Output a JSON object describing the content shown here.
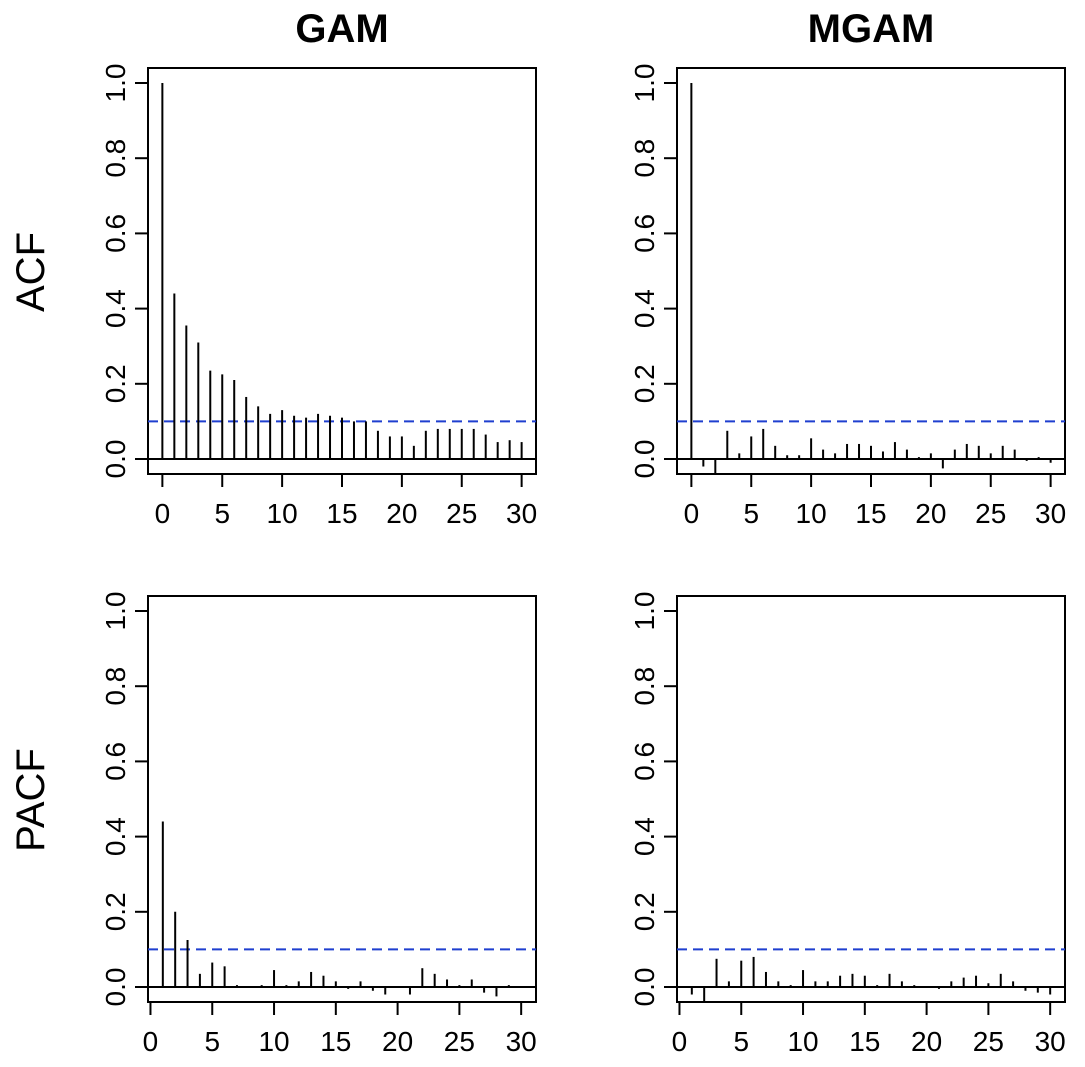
{
  "figure": {
    "col_titles": [
      "GAM",
      "MGAM"
    ],
    "row_titles": [
      "ACF",
      "PACF"
    ]
  },
  "style": {
    "bar_color": "#000000",
    "ci_color": "#1f3fcf",
    "frame_color": "#000000"
  },
  "chart_data": [
    {
      "type": "bar",
      "panel": "GAM ACF",
      "title": "GAM",
      "ylabel": "ACF",
      "xlim": [
        -1.2,
        31.2
      ],
      "ylim": [
        -0.04,
        1.04
      ],
      "xticks": [
        0,
        5,
        10,
        15,
        20,
        25,
        30
      ],
      "xtick_labels": [
        "0",
        "5",
        "10",
        "15",
        "20",
        "25",
        "30"
      ],
      "yticks": [
        0.0,
        0.2,
        0.4,
        0.6,
        0.8,
        1.0
      ],
      "ytick_labels": [
        "0.0",
        "0.2",
        "0.4",
        "0.6",
        "0.8",
        "1.0"
      ],
      "ci": 0.1,
      "x": [
        0,
        1,
        2,
        3,
        4,
        5,
        6,
        7,
        8,
        9,
        10,
        11,
        12,
        13,
        14,
        15,
        16,
        17,
        18,
        19,
        20,
        21,
        22,
        23,
        24,
        25,
        26,
        27,
        28,
        29,
        30
      ],
      "values": [
        1.0,
        0.44,
        0.355,
        0.31,
        0.235,
        0.225,
        0.21,
        0.165,
        0.14,
        0.12,
        0.13,
        0.115,
        0.11,
        0.12,
        0.115,
        0.11,
        0.1,
        0.1,
        0.075,
        0.06,
        0.06,
        0.035,
        0.075,
        0.08,
        0.08,
        0.08,
        0.08,
        0.065,
        0.045,
        0.05,
        0.045
      ]
    },
    {
      "type": "bar",
      "panel": "MGAM ACF",
      "title": "MGAM",
      "ylabel": "",
      "xlim": [
        -1.2,
        31.2
      ],
      "ylim": [
        -0.04,
        1.04
      ],
      "xticks": [
        0,
        5,
        10,
        15,
        20,
        25,
        30
      ],
      "xtick_labels": [
        "0",
        "5",
        "10",
        "15",
        "20",
        "25",
        "30"
      ],
      "yticks": [
        0.0,
        0.2,
        0.4,
        0.6,
        0.8,
        1.0
      ],
      "ytick_labels": [
        "0.0",
        "0.2",
        "0.4",
        "0.6",
        "0.8",
        "1.0"
      ],
      "ci": 0.1,
      "x": [
        0,
        1,
        2,
        3,
        4,
        5,
        6,
        7,
        8,
        9,
        10,
        11,
        12,
        13,
        14,
        15,
        16,
        17,
        18,
        19,
        20,
        21,
        22,
        23,
        24,
        25,
        26,
        27,
        28,
        29,
        30
      ],
      "values": [
        1.0,
        -0.02,
        -0.04,
        0.075,
        0.015,
        0.06,
        0.08,
        0.035,
        0.01,
        0.01,
        0.055,
        0.025,
        0.015,
        0.04,
        0.04,
        0.035,
        0.02,
        0.045,
        0.025,
        0.005,
        0.015,
        -0.025,
        0.025,
        0.04,
        0.035,
        0.015,
        0.035,
        0.025,
        -0.005,
        0.005,
        -0.01
      ]
    },
    {
      "type": "bar",
      "panel": "GAM PACF",
      "title": "",
      "ylabel": "PACF",
      "xlim": [
        -0.2,
        31.2
      ],
      "ylim": [
        -0.04,
        1.04
      ],
      "xticks": [
        0,
        5,
        10,
        15,
        20,
        25,
        30
      ],
      "xtick_labels": [
        "0",
        "5",
        "10",
        "15",
        "20",
        "25",
        "30"
      ],
      "yticks": [
        0.0,
        0.2,
        0.4,
        0.6,
        0.8,
        1.0
      ],
      "ytick_labels": [
        "0.0",
        "0.2",
        "0.4",
        "0.6",
        "0.8",
        "1.0"
      ],
      "ci": 0.1,
      "x": [
        1,
        2,
        3,
        4,
        5,
        6,
        7,
        8,
        9,
        10,
        11,
        12,
        13,
        14,
        15,
        16,
        17,
        18,
        19,
        20,
        21,
        22,
        23,
        24,
        25,
        26,
        27,
        28,
        29,
        30
      ],
      "values": [
        0.44,
        0.2,
        0.125,
        0.035,
        0.065,
        0.055,
        0.005,
        0.0,
        0.005,
        0.045,
        0.005,
        0.015,
        0.04,
        0.03,
        0.015,
        -0.005,
        0.015,
        -0.01,
        -0.02,
        0.0,
        -0.02,
        0.05,
        0.035,
        0.02,
        0.005,
        0.02,
        -0.015,
        -0.025,
        0.005,
        0.0
      ]
    },
    {
      "type": "bar",
      "panel": "MGAM PACF",
      "title": "",
      "ylabel": "",
      "xlim": [
        -0.2,
        31.2
      ],
      "ylim": [
        -0.04,
        1.04
      ],
      "xticks": [
        0,
        5,
        10,
        15,
        20,
        25,
        30
      ],
      "xtick_labels": [
        "0",
        "5",
        "10",
        "15",
        "20",
        "25",
        "30"
      ],
      "yticks": [
        0.0,
        0.2,
        0.4,
        0.6,
        0.8,
        1.0
      ],
      "ytick_labels": [
        "0.0",
        "0.2",
        "0.4",
        "0.6",
        "0.8",
        "1.0"
      ],
      "ci": 0.1,
      "x": [
        1,
        2,
        3,
        4,
        5,
        6,
        7,
        8,
        9,
        10,
        11,
        12,
        13,
        14,
        15,
        16,
        17,
        18,
        19,
        20,
        21,
        22,
        23,
        24,
        25,
        26,
        27,
        28,
        29,
        30
      ],
      "values": [
        -0.02,
        -0.04,
        0.075,
        0.015,
        0.07,
        0.08,
        0.04,
        0.015,
        0.005,
        0.045,
        0.015,
        0.015,
        0.03,
        0.035,
        0.03,
        0.005,
        0.035,
        0.015,
        0.005,
        0.0,
        -0.005,
        0.015,
        0.025,
        0.03,
        0.01,
        0.035,
        0.015,
        -0.01,
        -0.015,
        -0.02
      ]
    }
  ]
}
